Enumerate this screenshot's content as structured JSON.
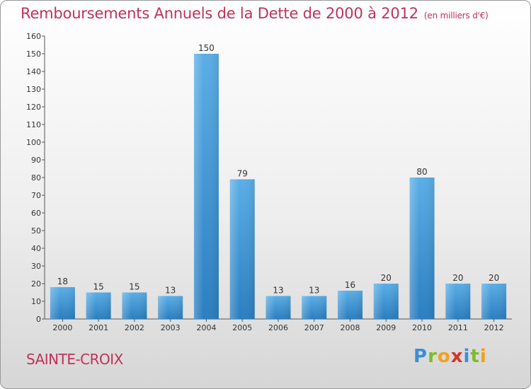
{
  "header": {
    "title": "Remboursements Annuels de la Dette de 2000 à 2012",
    "unit": "(en milliers d'€)"
  },
  "footer": {
    "commune": "SAINTE-CROIX",
    "brand": "Proxiti"
  },
  "colors": {
    "accent": "#c0325a",
    "bar_light": "#5aaee6",
    "bar_dark": "#2a7ec0"
  },
  "chart_data": {
    "type": "bar",
    "title": "Remboursements Annuels de la Dette de 2000 à 2012",
    "subtitle": "(en milliers d'€)",
    "categories": [
      "2000",
      "2001",
      "2002",
      "2003",
      "2004",
      "2005",
      "2006",
      "2007",
      "2008",
      "2009",
      "2010",
      "2011",
      "2012"
    ],
    "values": [
      18,
      15,
      15,
      13,
      150,
      79,
      13,
      13,
      16,
      20,
      80,
      20,
      20
    ],
    "ylim": [
      0,
      160
    ],
    "yticks": [
      0,
      10,
      20,
      30,
      40,
      50,
      60,
      70,
      80,
      90,
      100,
      110,
      120,
      130,
      140,
      150,
      160
    ],
    "grid": false,
    "legend": "none"
  }
}
